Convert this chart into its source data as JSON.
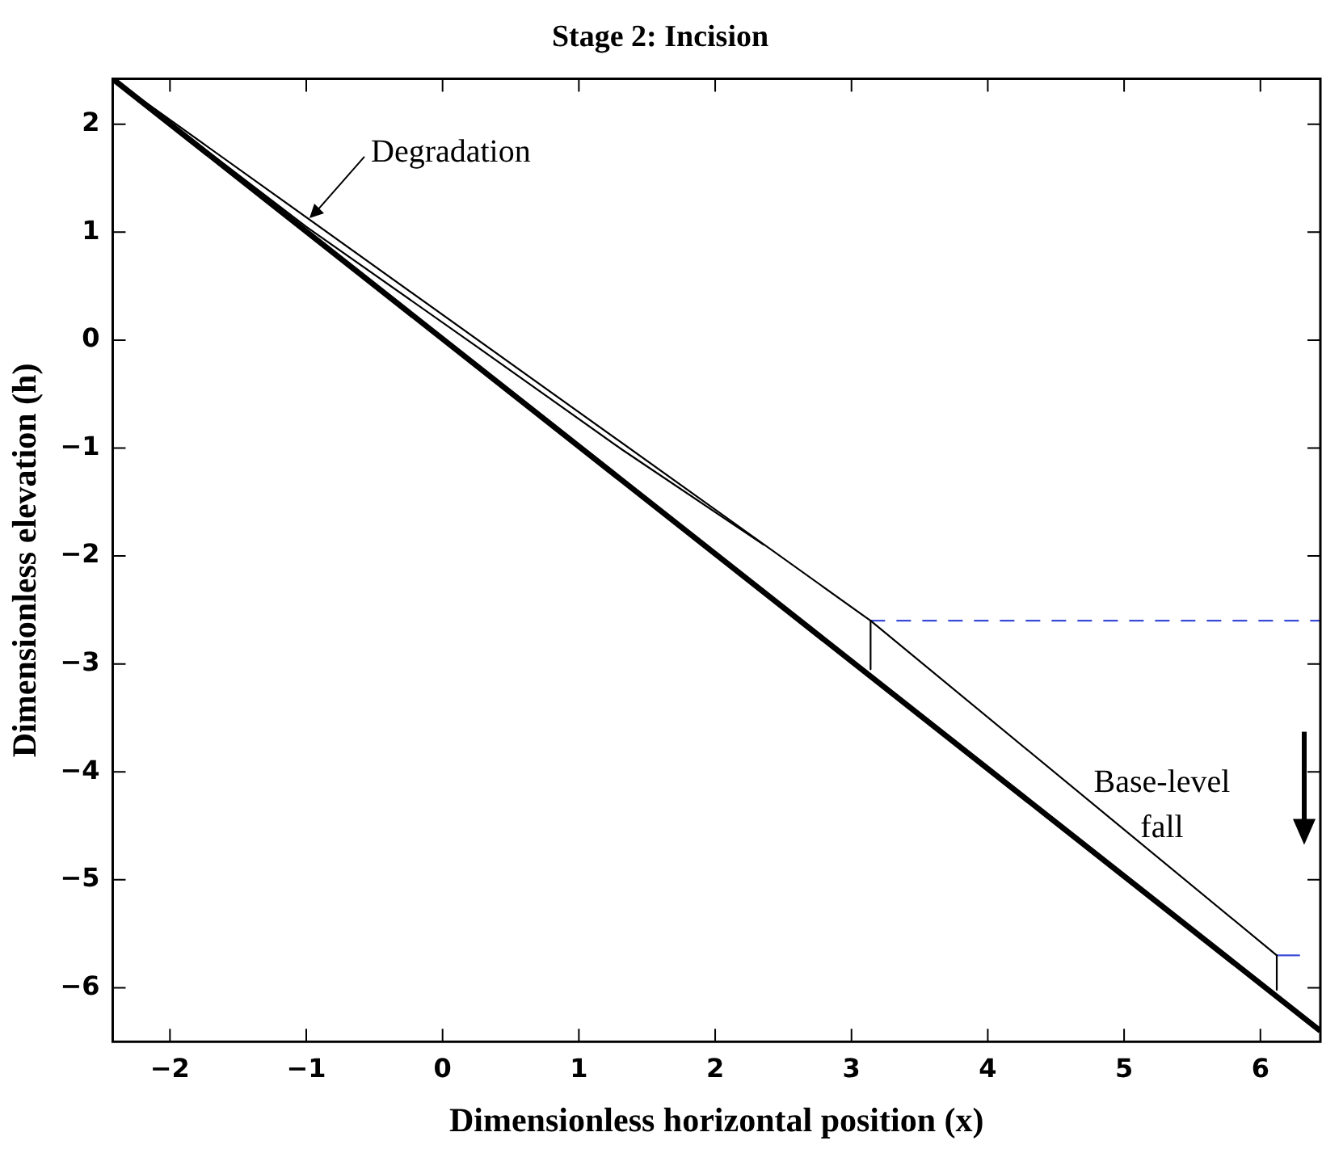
{
  "chart_data": {
    "type": "line",
    "title": "Stage 2: Incision",
    "xlabel": "Dimensionless horizontal position (x)",
    "ylabel": "Dimensionless elevation (h)",
    "xlim": [
      -2.42,
      6.44
    ],
    "ylim": [
      -6.5,
      2.42
    ],
    "xticks": [
      -2,
      -1,
      0,
      1,
      2,
      3,
      4,
      5,
      6
    ],
    "yticks": [
      -6,
      -5,
      -4,
      -3,
      -2,
      -1,
      0,
      1,
      2
    ],
    "grid": false,
    "legend": false,
    "marker": "none",
    "line_style": "solid",
    "series": [
      {
        "color": "#000000",
        "x": [
          -2.42,
          6.44
        ],
        "values": [
          2.42,
          -6.4
        ]
      },
      {
        "color": "#000000",
        "x": [
          -2.42,
          3.14,
          6.12
        ],
        "values": [
          2.42,
          -2.6,
          -5.7
        ]
      },
      {
        "color": "#000000",
        "x": [
          -2.42,
          -1,
          0.24,
          1.3,
          2.36
        ],
        "values": [
          2.42,
          1.05,
          -0.05,
          -1.0,
          -1.9
        ]
      },
      {
        "color": "#000000",
        "x": [
          3.14,
          3.14
        ],
        "values": [
          -2.6,
          -3.05
        ]
      },
      {
        "color": "#000000",
        "x": [
          6.12,
          6.12
        ],
        "values": [
          -5.7,
          -6.02
        ]
      },
      {
        "color": "#3a4ad8",
        "line_style": "dashed",
        "x": [
          3.14,
          6.44
        ],
        "values": [
          -2.6,
          -2.6
        ]
      },
      {
        "color": "#3a4ad8",
        "x": [
          6.12,
          6.29
        ],
        "values": [
          -5.7,
          -5.7
        ]
      }
    ],
    "annotations": [
      {
        "text": "Degradation",
        "x": -1,
        "y": 1.1
      },
      "Base-level fall"
    ]
  }
}
